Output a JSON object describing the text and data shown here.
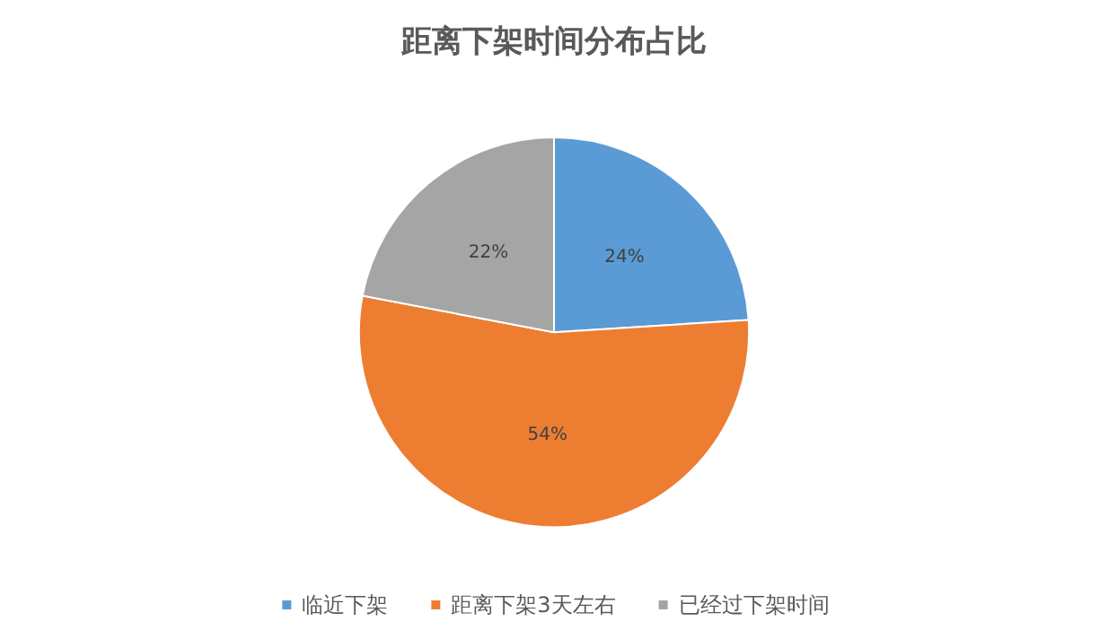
{
  "chart_data": {
    "type": "pie",
    "title": "距离下架时间分布占比",
    "categories": [
      "临近下架",
      "距离下架3天左右",
      "已经过下架时间"
    ],
    "values": [
      24,
      54,
      22
    ],
    "colors": [
      "#5b9bd5",
      "#ed7d31",
      "#a5a5a5"
    ],
    "value_labels": [
      "24%",
      "54%",
      "22%"
    ],
    "legend": "bottom"
  }
}
